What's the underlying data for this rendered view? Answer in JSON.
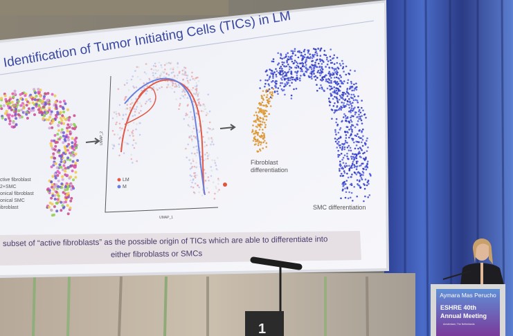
{
  "slide": {
    "title": "Identification of Tumor Initiating Cells (TICs) in LM",
    "legend_left": [
      "ctive fibroblast",
      "2+SMC",
      "onical fibroblast",
      "onical SMC",
      "ibroblast"
    ],
    "umap": {
      "x_label": "UMAP_1",
      "y_label": "UMAP_2",
      "legend": [
        "LM",
        "M"
      ]
    },
    "fibroblast_label": [
      "Fibroblast",
      "differentiation"
    ],
    "smc_label": "SMC differentiation",
    "caption_lines": [
      "subset of “active fibroblasts” as the possible origin of TICs which are able to differentiate into",
      "either fibroblasts or SMCs"
    ]
  },
  "podium": {
    "speaker": "Aymara Mas Perucho",
    "event_lines": [
      "ESHRE 40th",
      "Annual Meeting"
    ],
    "location": "Amsterdam, The Netherlands"
  },
  "sign": "1"
}
